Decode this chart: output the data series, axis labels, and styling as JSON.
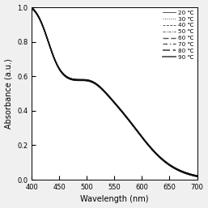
{
  "title": "",
  "xlabel": "Wavelength (nm)",
  "ylabel": "Absorbance (a.u.)",
  "xlim": [
    400,
    700
  ],
  "ylim": [
    0.0,
    1.0
  ],
  "xticks": [
    400,
    450,
    500,
    550,
    600,
    650,
    700
  ],
  "yticks": [
    0.0,
    0.2,
    0.4,
    0.6,
    0.8,
    1.0
  ],
  "legend_entries": [
    {
      "label": "20 ℃",
      "linestyle": "-",
      "linewidth": 0.7,
      "color": "#888888",
      "dashes": []
    },
    {
      "label": "30 ℃",
      "linestyle": ":",
      "linewidth": 0.7,
      "color": "#aaaaaa",
      "dashes": [
        1,
        1.5
      ]
    },
    {
      "label": "40 ℃",
      "linestyle": "--",
      "linewidth": 0.7,
      "color": "#888888",
      "dashes": [
        3,
        1.5
      ]
    },
    {
      "label": "50 ℃",
      "linestyle": "-.",
      "linewidth": 0.7,
      "color": "#888888",
      "dashes": [
        3,
        1.5,
        1,
        1.5
      ]
    },
    {
      "label": "60 ℃",
      "linestyle": "--",
      "linewidth": 1.0,
      "color": "#666666",
      "dashes": [
        5,
        2
      ]
    },
    {
      "label": "70 ℃",
      "linestyle": "-.",
      "linewidth": 1.0,
      "color": "#666666",
      "dashes": [
        4,
        2,
        1,
        2
      ]
    },
    {
      "label": "80 ℃",
      "linestyle": "--",
      "linewidth": 1.3,
      "color": "#333333",
      "dashes": [
        5,
        2
      ]
    },
    {
      "label": "90 ℃",
      "linestyle": "-",
      "linewidth": 1.3,
      "color": "#111111",
      "dashes": []
    }
  ],
  "background_color": "#f0f0f0",
  "plot_background": "#ffffff",
  "curve_color": "#111111",
  "curve_linewidth": 0.8
}
